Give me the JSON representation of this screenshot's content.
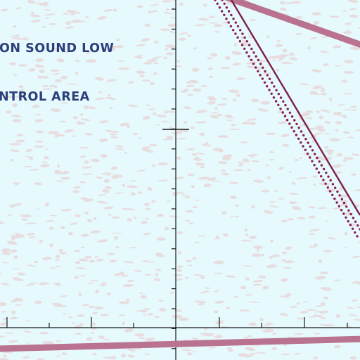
{
  "map": {
    "area_label": {
      "line1": "ON SOUND LOW",
      "line2": "NTROL AREA"
    },
    "colors": {
      "background": "#e6f9fc",
      "texture": "#e8d7d8",
      "grid_line": "#1a1a1a",
      "boundary_solid": "#7d1f49",
      "boundary_dotted": "#8a1e4e",
      "band": "#b9728f",
      "label_text": "#2c3f7a"
    }
  }
}
